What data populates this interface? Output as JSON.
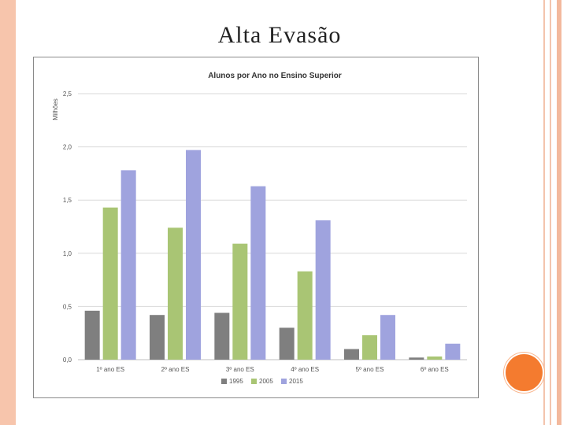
{
  "slide": {
    "title": "Alta Evasão"
  },
  "colors": {
    "border_accent": "#f7c5ac",
    "circle_accent": "#f47b2f"
  },
  "chart_data": {
    "type": "bar",
    "title": "Alunos por Ano no Ensino Superior",
    "ylabel": "Milhões",
    "xlabel": "",
    "ylim": [
      0,
      2.5
    ],
    "yticks": [
      "0,0",
      "0,5",
      "1,0",
      "1,5",
      "2,0",
      "2,5"
    ],
    "ytick_values": [
      0,
      0.5,
      1.0,
      1.5,
      2.0,
      2.5
    ],
    "grid": true,
    "legend_position": "bottom",
    "categories": [
      "1º ano ES",
      "2º ano ES",
      "3º ano ES",
      "4º ano ES",
      "5º ano ES",
      "6º ano ES"
    ],
    "series": [
      {
        "name": "1995",
        "color": "#7f7f7f",
        "values": [
          0.46,
          0.42,
          0.44,
          0.3,
          0.1,
          0.02
        ]
      },
      {
        "name": "2005",
        "color": "#a9c574",
        "values": [
          1.43,
          1.24,
          1.09,
          0.83,
          0.23,
          0.03
        ]
      },
      {
        "name": "2015",
        "color": "#9fa3de",
        "values": [
          1.78,
          1.97,
          1.63,
          1.31,
          0.42,
          0.15
        ]
      }
    ]
  }
}
